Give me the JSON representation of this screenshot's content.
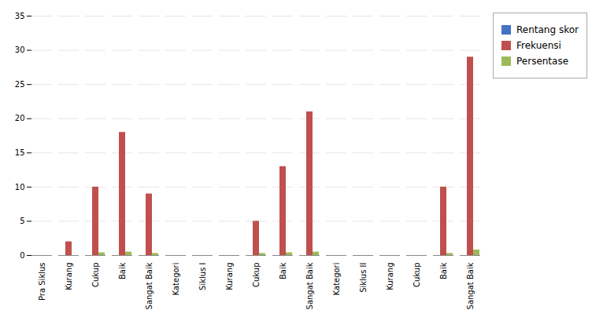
{
  "chart_data": {
    "type": "bar",
    "categories": [
      "Pra Siklus",
      "Kurang",
      "Cukup",
      "Baik",
      "Sangat Baik",
      "Kategori",
      "Siklus I",
      "Kurang",
      "Cukup",
      "Baik",
      "Sangat Baik",
      "Kategori",
      "Siklus II",
      "Kurang",
      "Cukup",
      "Baik",
      "Sangat Baik"
    ],
    "series": [
      {
        "name": "Rentang skor",
        "color": "#4472C4",
        "values": [
          0,
          0,
          0,
          0,
          0,
          0,
          0,
          0,
          0,
          0,
          0,
          0,
          0,
          0,
          0,
          0,
          0
        ]
      },
      {
        "name": "Frekuensi",
        "color": "#C0504D",
        "values": [
          0,
          2,
          10,
          18,
          9,
          0,
          0,
          0,
          5,
          13,
          21,
          0,
          0,
          0,
          0,
          10,
          29
        ]
      },
      {
        "name": "Persentase",
        "color": "#9BBB59",
        "values": [
          0,
          0,
          0.4,
          0.5,
          0.3,
          0,
          0,
          0,
          0.3,
          0.4,
          0.5,
          0,
          0,
          0,
          0,
          0.3,
          0.8
        ]
      }
    ],
    "ylim": [
      0,
      35
    ],
    "yticks": [
      0,
      5,
      10,
      15,
      20,
      25,
      30,
      35
    ],
    "grid": true,
    "legend": "right"
  }
}
